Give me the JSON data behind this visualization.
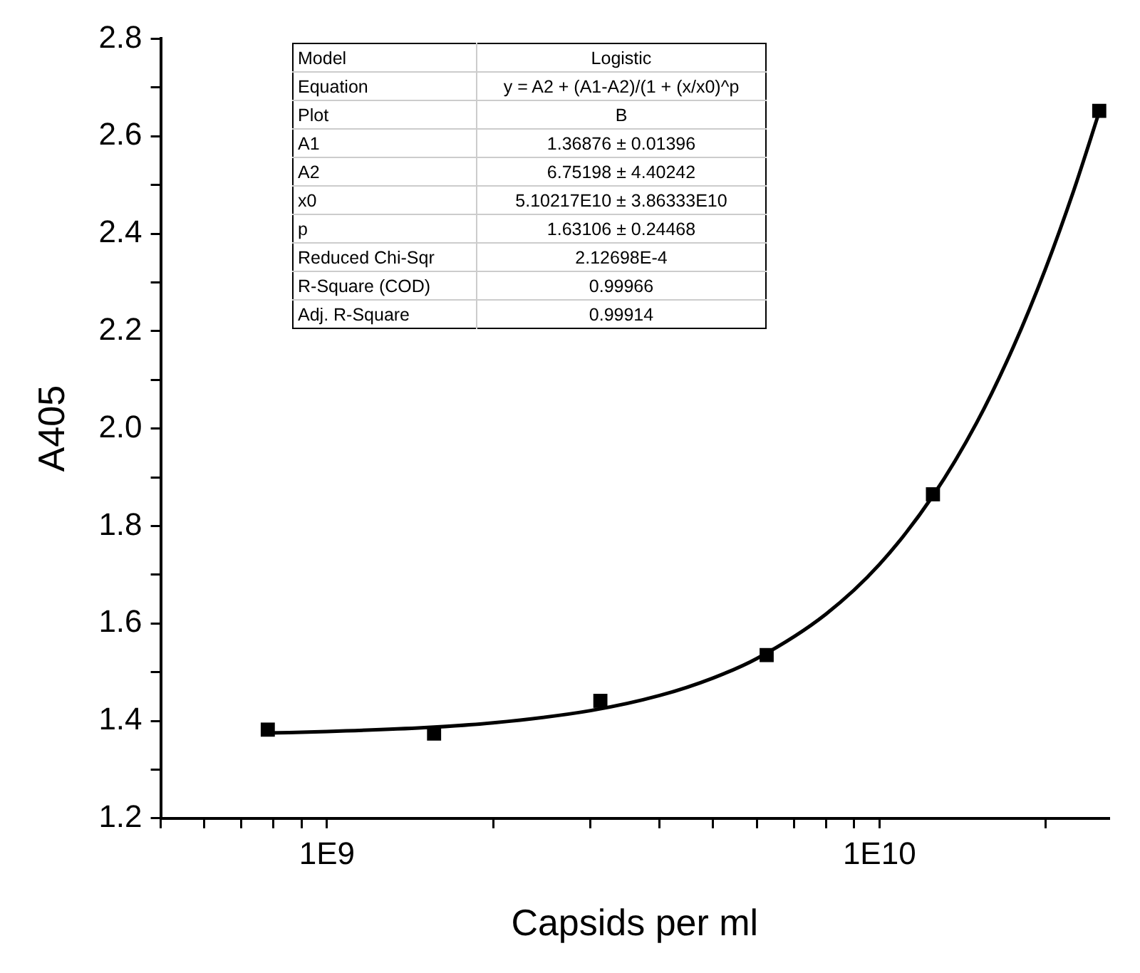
{
  "chart_data": {
    "type": "scatter",
    "xlabel": "Capsids per ml",
    "ylabel": "A405",
    "log": "x",
    "grid": false,
    "legend": false,
    "xlim": [
      500000000,
      26000000000
    ],
    "xticks": [
      {
        "value": 500000000,
        "label": null
      },
      {
        "value": 600000000,
        "label": null
      },
      {
        "value": 700000000,
        "label": null
      },
      {
        "value": 800000000,
        "label": null
      },
      {
        "value": 900000000,
        "label": null
      },
      {
        "value": 1000000000,
        "label": "1E9"
      },
      {
        "value": 2000000000,
        "label": null
      },
      {
        "value": 3000000000,
        "label": null
      },
      {
        "value": 4000000000,
        "label": null
      },
      {
        "value": 5000000000,
        "label": null
      },
      {
        "value": 6000000000,
        "label": null
      },
      {
        "value": 7000000000,
        "label": null
      },
      {
        "value": 8000000000,
        "label": null
      },
      {
        "value": 9000000000,
        "label": null
      },
      {
        "value": 10000000000,
        "label": "1E10"
      },
      {
        "value": 20000000000,
        "label": null
      }
    ],
    "ylim": [
      1.2,
      2.8
    ],
    "yticks": [
      {
        "value": 1.2,
        "label": "1.2"
      },
      {
        "value": 1.3,
        "label": null
      },
      {
        "value": 1.4,
        "label": "1.4"
      },
      {
        "value": 1.5,
        "label": null
      },
      {
        "value": 1.6,
        "label": "1.6"
      },
      {
        "value": 1.7,
        "label": null
      },
      {
        "value": 1.8,
        "label": "1.8"
      },
      {
        "value": 1.9,
        "label": null
      },
      {
        "value": 2.0,
        "label": "2.0"
      },
      {
        "value": 2.1,
        "label": null
      },
      {
        "value": 2.2,
        "label": "2.2"
      },
      {
        "value": 2.3,
        "label": null
      },
      {
        "value": 2.4,
        "label": "2.4"
      },
      {
        "value": 2.5,
        "label": null
      },
      {
        "value": 2.6,
        "label": "2.6"
      },
      {
        "value": 2.7,
        "label": null
      },
      {
        "value": 2.8,
        "label": "2.8"
      }
    ],
    "series": [
      {
        "type": "scatter",
        "color": "#000000",
        "marker": "square",
        "x": [
          781250000,
          1562500000,
          3125000000,
          6250000000,
          12500000000,
          25000000000
        ],
        "values": [
          1.382,
          1.374,
          1.441,
          1.535,
          1.865,
          2.652
        ]
      },
      {
        "type": "line",
        "color": "#000000",
        "marker": "none",
        "line_style": "solid",
        "x": [
          781250000,
          1000000000,
          1500000000,
          2000000000,
          3000000000,
          4000000000,
          5000000000,
          6000000000,
          8000000000,
          10000000000,
          12500000000,
          15000000000,
          17500000000,
          20000000000,
          22500000000,
          25000000000
        ],
        "values": [
          1.375,
          1.378,
          1.386,
          1.396,
          1.421,
          1.452,
          1.488,
          1.528,
          1.619,
          1.721,
          1.862,
          2.012,
          2.169,
          2.329,
          2.49,
          2.65
        ]
      }
    ],
    "annotations": [
      "Model",
      "Logistic",
      "Equation",
      "y = A2 + (A1-A2)/(1 + (x/x0)^p",
      "Plot",
      "B",
      "A1",
      "1.36876 ± 0.01396",
      "A2",
      "6.75198 ± 4.40242",
      "x0",
      "5.10217E10 ± 3.86333E10",
      "p",
      "1.63106 ± 0.24468",
      "Reduced Chi-Sqr",
      "2.12698E-4",
      "R-Square (COD)",
      "0.99966",
      "Adj. R-Square",
      "0.99914"
    ]
  }
}
